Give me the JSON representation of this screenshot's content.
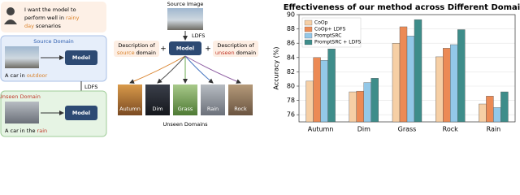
{
  "prompt": [
    "I want the model to",
    "perform well in ",
    "rainy",
    "day",
    " scenarios"
  ],
  "source_panel": {
    "title": "Source Domain",
    "model": "Model",
    "caption": "A car in ",
    "keyword": "outdoor"
  },
  "arrow_label": "LDFS",
  "unseen_panel": {
    "title": "Unseen Domain",
    "model": "Model",
    "caption": "A car in the ",
    "keyword": "rain"
  },
  "pipeline": {
    "source_image": "Source Image",
    "method": "LDFS",
    "model": "Model",
    "descriptions": [
      {
        "prefix": "Description of",
        "keyword": "source",
        "suffix": " domain"
      },
      {
        "prefix": "Description of",
        "keyword": "unseen",
        "suffix": " domain"
      }
    ],
    "domains": [
      "Autumn",
      "Dim",
      "Grass",
      "Rain",
      "Rock"
    ],
    "domains_label": "Unseen Domains"
  },
  "chart_data": {
    "type": "bar",
    "title": "Effectiveness of our method across Different Domains",
    "y_label": "Accuracy (%)",
    "categories": [
      "Autumn",
      "Dim",
      "Grass",
      "Rock",
      "Rain"
    ],
    "series": [
      {
        "name": "CoOp",
        "color": "#f6cfa5",
        "values": [
          80.7,
          79.2,
          86.0,
          84.1,
          77.5
        ]
      },
      {
        "name": "CoOp+ LDFS",
        "color": "#ec8a55",
        "values": [
          84.0,
          79.3,
          88.3,
          85.3,
          78.6
        ]
      },
      {
        "name": "PromptSRC",
        "color": "#93c8e8",
        "values": [
          83.6,
          80.5,
          87.0,
          85.8,
          77.0
        ]
      },
      {
        "name": "PromptSRC + LDFS",
        "color": "#3e8d8a",
        "values": [
          85.2,
          81.1,
          89.3,
          87.9,
          79.2
        ]
      }
    ],
    "ylim": [
      75,
      90
    ],
    "yticks": [
      76,
      78,
      80,
      82,
      84,
      86,
      88,
      90
    ],
    "grid": true,
    "legend": "top-left"
  }
}
